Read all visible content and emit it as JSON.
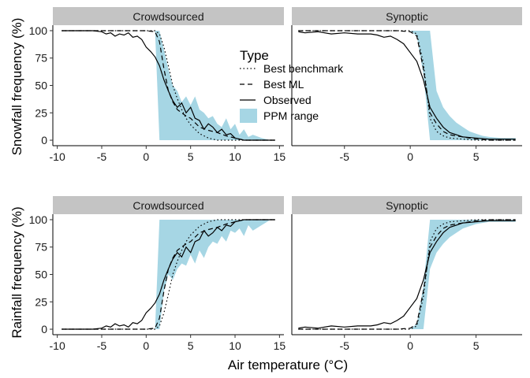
{
  "figure": {
    "xlabel": "Air temperature (°C)"
  },
  "legend": {
    "title": "Type",
    "items": [
      {
        "label": "Best benchmark",
        "linetype": "dotted"
      },
      {
        "label": "Best ML",
        "linetype": "dashed"
      },
      {
        "label": "Observed",
        "linetype": "solid"
      },
      {
        "label": "PPM range",
        "linetype": "fill"
      }
    ]
  },
  "colors": {
    "ppm_fill": "#a6d6e4",
    "line": "#000000",
    "strip_bg": "#c4c4c4"
  },
  "chart_data": [
    {
      "type": "line",
      "panel": "top-left",
      "strip": "Crowdsourced",
      "ylabel": "Snowfall frequency (%)",
      "xlim": [
        -10.5,
        15.5
      ],
      "ylim": [
        -5,
        105
      ],
      "xticks": [
        -10,
        -5,
        0,
        5,
        10,
        15
      ],
      "yticks": [
        0,
        25,
        50,
        75,
        100
      ],
      "ppm_range": {
        "x": [
          -9.5,
          -5,
          0,
          1,
          1.5,
          2.5,
          3,
          3.5,
          4,
          4.5,
          5,
          5.5,
          6,
          6.5,
          7,
          7.5,
          8,
          8.5,
          9,
          9.5,
          10,
          10.5,
          11,
          11.5,
          12,
          13,
          14,
          14.5
        ],
        "ymin": [
          100,
          100,
          100,
          100,
          0,
          0,
          0,
          0,
          0,
          0,
          0,
          0,
          0,
          0,
          0,
          0,
          0,
          0,
          0,
          0,
          0,
          0,
          0,
          0,
          0,
          0,
          0,
          0
        ],
        "ymax": [
          100,
          100,
          100,
          100,
          100,
          65,
          50,
          45,
          35,
          40,
          32,
          40,
          28,
          25,
          20,
          22,
          15,
          12,
          20,
          10,
          15,
          5,
          10,
          3,
          5,
          2,
          0,
          0
        ]
      },
      "series": [
        {
          "name": "Observed",
          "linetype": "solid",
          "x": [
            -9.5,
            -8,
            -7,
            -6,
            -5,
            -4.5,
            -4,
            -3.5,
            -3,
            -2.5,
            -2,
            -1.5,
            -1,
            -0.5,
            0,
            0.5,
            1,
            1.5,
            2,
            2.5,
            3,
            3.5,
            4,
            4.5,
            5,
            5.5,
            6,
            6.5,
            7,
            7.5,
            8,
            8.5,
            9,
            9.5,
            10,
            11,
            12,
            13,
            14,
            14.5
          ],
          "y": [
            100,
            100,
            100,
            100,
            99,
            97,
            98,
            95,
            97,
            96,
            98,
            94,
            95,
            92,
            85,
            81,
            76,
            68,
            55,
            45,
            36,
            30,
            34,
            25,
            30,
            20,
            18,
            10,
            15,
            12,
            7,
            10,
            5,
            6,
            2,
            0,
            0,
            0,
            0,
            0
          ]
        },
        {
          "name": "Best ML",
          "linetype": "dashed",
          "x": [
            -9.5,
            -5,
            -2,
            0,
            1,
            1.5,
            2,
            2.5,
            3,
            3.5,
            4,
            4.5,
            5,
            5.5,
            6,
            7,
            8,
            9,
            10,
            11,
            12,
            14.5
          ],
          "y": [
            100,
            100,
            100,
            100,
            99,
            90,
            65,
            45,
            35,
            28,
            25,
            22,
            20,
            16,
            12,
            9,
            7,
            4,
            2,
            0,
            0,
            0
          ]
        },
        {
          "name": "Best benchmark",
          "linetype": "dotted",
          "x": [
            -9.5,
            -5,
            0,
            1,
            1.5,
            2,
            2.5,
            3,
            3.5,
            4,
            4.5,
            5,
            5.5,
            6,
            6.5,
            7,
            7.5,
            8,
            14.5
          ],
          "y": [
            100,
            100,
            100,
            100,
            97,
            85,
            68,
            50,
            38,
            28,
            20,
            14,
            10,
            6,
            4,
            2,
            1,
            0,
            0
          ]
        }
      ]
    },
    {
      "type": "line",
      "panel": "top-right",
      "strip": "Synoptic",
      "xlim": [
        -9,
        8.5
      ],
      "ylim": [
        -5,
        105
      ],
      "xticks": [
        -5,
        0,
        5
      ],
      "ppm_range": {
        "x": [
          -8.5,
          -3,
          -1,
          0,
          0.5,
          1,
          1.5,
          2,
          2.5,
          3,
          3.5,
          4,
          4.5,
          5,
          5.5,
          6,
          7,
          8
        ],
        "ymin": [
          100,
          100,
          100,
          100,
          95,
          60,
          0,
          0,
          0,
          0,
          0,
          0,
          0,
          0,
          0,
          0,
          0,
          0
        ],
        "ymax": [
          100,
          100,
          100,
          100,
          100,
          100,
          100,
          45,
          30,
          22,
          16,
          12,
          8,
          6,
          4,
          3,
          2,
          2
        ]
      },
      "series": [
        {
          "name": "Observed",
          "linetype": "solid",
          "x": [
            -8.5,
            -8,
            -7,
            -6,
            -5,
            -4,
            -3,
            -2.5,
            -2,
            -1.5,
            -1,
            -0.5,
            0,
            0.5,
            1,
            1.5,
            2,
            2.5,
            3,
            3.5,
            4,
            5,
            6,
            7,
            8
          ],
          "y": [
            99,
            98,
            99,
            97,
            98,
            97,
            97,
            96,
            94,
            95,
            92,
            88,
            80,
            72,
            55,
            30,
            20,
            12,
            7,
            5,
            3,
            2,
            1,
            1,
            1
          ]
        },
        {
          "name": "Best ML",
          "linetype": "dashed",
          "x": [
            -8.5,
            -3,
            -1,
            0,
            0.5,
            1,
            1.5,
            2,
            2.5,
            3,
            4,
            5,
            6,
            8
          ],
          "y": [
            100,
            100,
            100,
            99,
            95,
            65,
            25,
            15,
            8,
            5,
            3,
            1,
            0,
            0
          ]
        },
        {
          "name": "Best benchmark",
          "linetype": "dotted",
          "x": [
            -8.5,
            -1,
            0,
            0.5,
            1,
            1.5,
            2,
            2.5,
            3,
            4,
            5,
            8
          ],
          "y": [
            100,
            100,
            100,
            97,
            70,
            20,
            8,
            4,
            2,
            1,
            0,
            0
          ]
        }
      ]
    },
    {
      "type": "line",
      "panel": "bottom-left",
      "strip": "Crowdsourced",
      "ylabel": "Rainfall frequency (%)",
      "xlim": [
        -10.5,
        15.5
      ],
      "ylim": [
        -5,
        105
      ],
      "xticks": [
        -10,
        -5,
        0,
        5,
        10,
        15
      ],
      "yticks": [
        0,
        25,
        50,
        75,
        100
      ],
      "ppm_range": {
        "x": [
          -9.5,
          -5,
          0,
          1,
          1.5,
          2,
          2.5,
          3,
          3.5,
          4,
          4.5,
          5,
          5.5,
          6,
          6.5,
          7,
          7.5,
          8,
          8.5,
          9,
          9.5,
          10,
          10.5,
          11,
          11.5,
          12,
          13,
          14,
          14.5
        ],
        "ymin": [
          0,
          0,
          0,
          0,
          0,
          35,
          50,
          45,
          55,
          60,
          58,
          68,
          60,
          72,
          65,
          75,
          80,
          78,
          85,
          80,
          90,
          88,
          92,
          85,
          95,
          90,
          95,
          100,
          100
        ],
        "ymax": [
          0,
          0,
          0,
          0,
          100,
          100,
          100,
          100,
          100,
          100,
          100,
          100,
          100,
          100,
          100,
          100,
          100,
          100,
          100,
          100,
          100,
          100,
          100,
          100,
          100,
          100,
          100,
          100,
          100
        ]
      },
      "series": [
        {
          "name": "Observed",
          "linetype": "solid",
          "x": [
            -9.5,
            -8,
            -7,
            -6,
            -5,
            -4.5,
            -4,
            -3.5,
            -3,
            -2.5,
            -2,
            -1.5,
            -1,
            -0.5,
            0,
            0.5,
            1,
            1.5,
            2,
            2.5,
            3,
            3.5,
            4,
            4.5,
            5,
            5.5,
            6,
            6.5,
            7,
            7.5,
            8,
            8.5,
            9,
            9.5,
            10,
            11,
            12,
            13,
            14,
            14.5
          ],
          "y": [
            0,
            0,
            0,
            0,
            1,
            3,
            2,
            5,
            3,
            4,
            2,
            6,
            5,
            8,
            15,
            19,
            24,
            32,
            45,
            55,
            64,
            70,
            66,
            75,
            70,
            80,
            82,
            90,
            85,
            88,
            93,
            90,
            95,
            94,
            98,
            100,
            100,
            100,
            100,
            100
          ]
        },
        {
          "name": "Best ML",
          "linetype": "dashed",
          "x": [
            -9.5,
            -5,
            -2,
            0,
            1,
            1.5,
            2,
            2.5,
            3,
            3.5,
            4,
            4.5,
            5,
            5.5,
            6,
            7,
            8,
            9,
            10,
            11,
            12,
            14.5
          ],
          "y": [
            0,
            0,
            0,
            0,
            1,
            10,
            35,
            55,
            65,
            72,
            75,
            78,
            80,
            84,
            88,
            91,
            93,
            96,
            98,
            100,
            100,
            100
          ]
        },
        {
          "name": "Best benchmark",
          "linetype": "dotted",
          "x": [
            -9.5,
            -5,
            0,
            1,
            1.5,
            2,
            2.5,
            3,
            3.5,
            4,
            4.5,
            5,
            5.5,
            6,
            6.5,
            7,
            7.5,
            8,
            14.5
          ],
          "y": [
            0,
            0,
            0,
            0,
            3,
            15,
            32,
            50,
            62,
            72,
            80,
            86,
            90,
            94,
            96,
            98,
            99,
            100,
            100
          ]
        }
      ]
    },
    {
      "type": "line",
      "panel": "bottom-right",
      "strip": "Synoptic",
      "xlim": [
        -9,
        8.5
      ],
      "ylim": [
        -5,
        105
      ],
      "xticks": [
        -5,
        0,
        5
      ],
      "ppm_range": {
        "x": [
          -8.5,
          -3,
          -1,
          0,
          0.5,
          1,
          1.5,
          2,
          2.5,
          3,
          3.5,
          4,
          4.5,
          5,
          5.5,
          6,
          7,
          8
        ],
        "ymin": [
          0,
          0,
          0,
          0,
          0,
          0,
          55,
          70,
          78,
          84,
          88,
          92,
          94,
          96,
          97,
          98,
          98,
          98
        ],
        "ymax": [
          0,
          0,
          0,
          0,
          5,
          40,
          100,
          100,
          100,
          100,
          100,
          100,
          100,
          100,
          100,
          100,
          100,
          100
        ]
      },
      "series": [
        {
          "name": "Observed",
          "linetype": "solid",
          "x": [
            -8.5,
            -8,
            -7,
            -6,
            -5,
            -4,
            -3,
            -2.5,
            -2,
            -1.5,
            -1,
            -0.5,
            0,
            0.5,
            1,
            1.5,
            2,
            2.5,
            3,
            3.5,
            4,
            5,
            6,
            7,
            8
          ],
          "y": [
            1,
            2,
            1,
            3,
            2,
            3,
            3,
            4,
            6,
            5,
            8,
            12,
            20,
            28,
            45,
            70,
            80,
            88,
            93,
            95,
            97,
            98,
            99,
            99,
            99
          ]
        },
        {
          "name": "Best ML",
          "linetype": "dashed",
          "x": [
            -8.5,
            -3,
            -1,
            0,
            0.5,
            1,
            1.5,
            2,
            2.5,
            3,
            4,
            5,
            6,
            8
          ],
          "y": [
            0,
            0,
            0,
            1,
            5,
            35,
            75,
            85,
            92,
            95,
            97,
            99,
            100,
            100
          ]
        },
        {
          "name": "Best benchmark",
          "linetype": "dotted",
          "x": [
            -8.5,
            -1,
            0,
            0.5,
            1,
            1.5,
            2,
            2.5,
            3,
            4,
            5,
            8
          ],
          "y": [
            0,
            0,
            0,
            3,
            30,
            80,
            92,
            96,
            98,
            99,
            100,
            100
          ]
        }
      ]
    }
  ]
}
